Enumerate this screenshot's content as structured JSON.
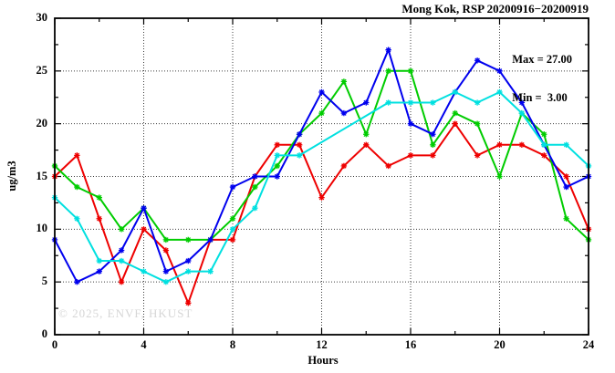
{
  "title": "Mong Kok, RSP 20200916−20200919",
  "annotations": {
    "max_label": "Max = 27.00",
    "min_label": "Min =  3.00"
  },
  "watermark": "© 2025, ENVF, HKUST",
  "colors": {
    "red": "#ee0000",
    "green": "#00cc00",
    "blue": "#0000ee",
    "cyan": "#00e0e0",
    "grid": "#3c3c3c",
    "frame": "#000000",
    "watermark": "#d6d6d6"
  },
  "chart_data": {
    "type": "line",
    "title": "Mong Kok, RSP 20200916−20200919",
    "xlabel": "Hours",
    "ylabel": "ug/m3",
    "xlim": [
      0,
      24
    ],
    "ylim": [
      0,
      30
    ],
    "x_ticks_major": [
      0,
      4,
      8,
      12,
      16,
      20,
      24
    ],
    "x_tick_minor_step": 2,
    "y_ticks_major": [
      0,
      5,
      10,
      15,
      20,
      25,
      30
    ],
    "y_tick_minor_step": 2.5,
    "grid": true,
    "legend": "none",
    "marker": "star-square",
    "x": [
      0,
      1,
      2,
      3,
      4,
      5,
      6,
      7,
      8,
      9,
      10,
      11,
      12,
      13,
      14,
      15,
      16,
      17,
      18,
      19,
      20,
      21,
      22,
      23,
      24
    ],
    "series": [
      {
        "name": "red",
        "color_key": "red",
        "values": [
          15,
          17,
          11,
          5,
          10,
          8,
          3,
          9,
          9,
          15,
          18,
          18,
          13,
          16,
          18,
          16,
          17,
          17,
          20,
          17,
          18,
          18,
          17,
          15,
          10
        ]
      },
      {
        "name": "green",
        "color_key": "green",
        "values": [
          16,
          14,
          13,
          10,
          12,
          9,
          9,
          9,
          11,
          14,
          16,
          19,
          21,
          24,
          19,
          25,
          25,
          18,
          21,
          20,
          15,
          21,
          19,
          11,
          9
        ]
      },
      {
        "name": "blue",
        "color_key": "blue",
        "values": [
          9,
          5,
          6,
          8,
          12,
          6,
          7,
          9,
          14,
          15,
          15,
          19,
          23,
          21,
          22,
          27,
          20,
          19,
          23,
          26,
          25,
          22,
          18,
          14,
          15
        ]
      },
      {
        "name": "cyan",
        "color_key": "cyan",
        "values": [
          13,
          11,
          7,
          7,
          6,
          5,
          6,
          6,
          10,
          12,
          17,
          17,
          null,
          null,
          null,
          22,
          22,
          22,
          23,
          22,
          23,
          21,
          18,
          18,
          16
        ]
      }
    ],
    "stats": {
      "max": 27.0,
      "min": 3.0
    }
  }
}
